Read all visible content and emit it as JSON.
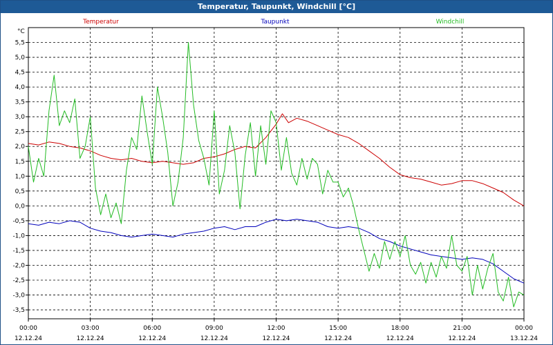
{
  "window": {
    "title": "Temperatur, Taupunkt, Windchill [°C]"
  },
  "chart_data": {
    "type": "line",
    "title": "Temperatur, Taupunkt, Windchill [°C]",
    "ylabel": "°C",
    "xlabel": "",
    "ylim": [
      -3.8,
      6.0
    ],
    "xlim": [
      0,
      24
    ],
    "grid": true,
    "yticks": [
      -3.5,
      -3.0,
      -2.5,
      -2.0,
      -1.5,
      -1.0,
      -0.5,
      0.0,
      0.5,
      1.0,
      1.5,
      2.0,
      2.5,
      3.0,
      3.5,
      4.0,
      4.5,
      5.0,
      5.5
    ],
    "ytick_labels": [
      "-3,5",
      "-3,0",
      "-2,5",
      "-2,0",
      "-1,5",
      "-1,0",
      "-0,5",
      "0,0",
      "0,5",
      "1,0",
      "1,5",
      "2,0",
      "2,5",
      "3,0",
      "3,5",
      "4,0",
      "4,5",
      "5,0",
      "5,5"
    ],
    "xticks": [
      {
        "x": 0,
        "time": "00:00",
        "date": "12.12.24"
      },
      {
        "x": 3,
        "time": "03:00",
        "date": "12.12.24"
      },
      {
        "x": 6,
        "time": "06:00",
        "date": "12.12.24"
      },
      {
        "x": 9,
        "time": "09:00",
        "date": "12.12.24"
      },
      {
        "x": 12,
        "time": "12:00",
        "date": "12.12.24"
      },
      {
        "x": 15,
        "time": "15:00",
        "date": "12.12.24"
      },
      {
        "x": 18,
        "time": "18:00",
        "date": "12.12.24"
      },
      {
        "x": 21,
        "time": "21:00",
        "date": "12.12.24"
      },
      {
        "x": 24,
        "time": "00:00",
        "date": "13.12.24"
      }
    ],
    "series": [
      {
        "name": "Temperatur",
        "color": "#cc0000",
        "legend_pos": "left",
        "x": [
          0,
          0.5,
          1,
          1.5,
          2,
          2.5,
          3,
          3.5,
          4,
          4.5,
          5,
          5.5,
          6,
          6.5,
          7,
          7.5,
          8,
          8.5,
          9,
          9.5,
          10,
          10.5,
          11,
          11.5,
          12,
          12.3,
          12.6,
          13,
          13.5,
          14,
          14.5,
          15,
          15.5,
          16,
          16.5,
          17,
          17.5,
          18,
          18.5,
          19,
          19.5,
          20,
          20.5,
          21,
          21.5,
          22,
          22.5,
          23,
          23.5,
          24
        ],
        "values": [
          2.1,
          2.05,
          2.15,
          2.1,
          2.0,
          1.95,
          1.85,
          1.7,
          1.6,
          1.55,
          1.6,
          1.5,
          1.45,
          1.5,
          1.45,
          1.4,
          1.45,
          1.6,
          1.65,
          1.75,
          1.9,
          2.0,
          1.95,
          2.3,
          2.75,
          3.1,
          2.8,
          2.95,
          2.85,
          2.7,
          2.55,
          2.4,
          2.3,
          2.1,
          1.85,
          1.6,
          1.3,
          1.05,
          0.95,
          0.9,
          0.8,
          0.7,
          0.75,
          0.85,
          0.85,
          0.75,
          0.6,
          0.45,
          0.2,
          0.0
        ]
      },
      {
        "name": "Taupunkt",
        "color": "#0000bb",
        "legend_pos": "center",
        "x": [
          0,
          0.5,
          1,
          1.5,
          2,
          2.5,
          3,
          3.5,
          4,
          4.5,
          5,
          5.5,
          6,
          6.5,
          7,
          7.5,
          8,
          8.5,
          9,
          9.5,
          10,
          10.5,
          11,
          11.5,
          12,
          12.5,
          13,
          13.5,
          14,
          14.5,
          15,
          15.5,
          16,
          16.5,
          17,
          17.5,
          18,
          18.5,
          19,
          19.5,
          20,
          20.5,
          21,
          21.5,
          22,
          22.5,
          23,
          23.5,
          24
        ],
        "values": [
          -0.6,
          -0.65,
          -0.55,
          -0.6,
          -0.5,
          -0.55,
          -0.75,
          -0.85,
          -0.9,
          -1.0,
          -1.05,
          -1.0,
          -0.95,
          -1.0,
          -1.05,
          -0.95,
          -0.9,
          -0.85,
          -0.75,
          -0.7,
          -0.8,
          -0.7,
          -0.7,
          -0.55,
          -0.45,
          -0.5,
          -0.45,
          -0.5,
          -0.55,
          -0.7,
          -0.75,
          -0.7,
          -0.75,
          -0.9,
          -1.1,
          -1.2,
          -1.35,
          -1.45,
          -1.55,
          -1.65,
          -1.7,
          -1.75,
          -1.8,
          -1.75,
          -1.8,
          -1.95,
          -2.2,
          -2.45,
          -2.6
        ]
      },
      {
        "name": "Windchill",
        "color": "#22bb22",
        "legend_pos": "right",
        "x": [
          0,
          0.25,
          0.5,
          0.75,
          1,
          1.25,
          1.5,
          1.75,
          2,
          2.25,
          2.5,
          2.75,
          3,
          3.25,
          3.5,
          3.75,
          4,
          4.25,
          4.5,
          4.75,
          5,
          5.25,
          5.5,
          5.75,
          6,
          6.25,
          6.5,
          6.75,
          7,
          7.25,
          7.5,
          7.75,
          8,
          8.25,
          8.5,
          8.75,
          9,
          9.25,
          9.5,
          9.75,
          10,
          10.25,
          10.5,
          10.75,
          11,
          11.25,
          11.5,
          11.75,
          12,
          12.25,
          12.5,
          12.75,
          13,
          13.25,
          13.5,
          13.75,
          14,
          14.25,
          14.5,
          14.75,
          15,
          15.25,
          15.5,
          15.75,
          16,
          16.25,
          16.5,
          16.75,
          17,
          17.25,
          17.5,
          17.75,
          18,
          18.25,
          18.5,
          18.75,
          19,
          19.25,
          19.5,
          19.75,
          20,
          20.25,
          20.5,
          20.75,
          21,
          21.25,
          21.5,
          21.75,
          22,
          22.25,
          22.5,
          22.75,
          23,
          23.25,
          23.5,
          23.75,
          24
        ],
        "values": [
          2.0,
          0.8,
          1.6,
          1.0,
          3.2,
          4.4,
          2.7,
          3.2,
          2.8,
          3.6,
          1.6,
          2.0,
          3.0,
          0.6,
          -0.3,
          0.4,
          -0.4,
          0.1,
          -0.6,
          1.2,
          2.3,
          1.9,
          3.7,
          2.5,
          1.4,
          4.0,
          3.0,
          1.8,
          0.0,
          0.8,
          2.3,
          5.5,
          3.4,
          2.2,
          1.6,
          0.7,
          3.2,
          0.4,
          1.2,
          2.7,
          1.8,
          -0.1,
          1.7,
          2.8,
          1.0,
          2.7,
          1.4,
          3.2,
          2.8,
          1.2,
          2.3,
          1.1,
          0.7,
          1.6,
          0.9,
          1.6,
          1.4,
          0.4,
          1.2,
          0.8,
          0.8,
          0.3,
          0.6,
          0.0,
          -0.8,
          -1.5,
          -2.2,
          -1.6,
          -2.1,
          -1.2,
          -1.8,
          -1.2,
          -1.7,
          -1.0,
          -2.0,
          -2.3,
          -1.9,
          -2.6,
          -1.9,
          -2.4,
          -1.7,
          -2.1,
          -1.0,
          -2.0,
          -2.2,
          -1.7,
          -3.0,
          -2.0,
          -2.8,
          -2.1,
          -1.6,
          -2.9,
          -3.2,
          -2.4,
          -3.4,
          -2.9,
          -3.0
        ]
      }
    ]
  }
}
